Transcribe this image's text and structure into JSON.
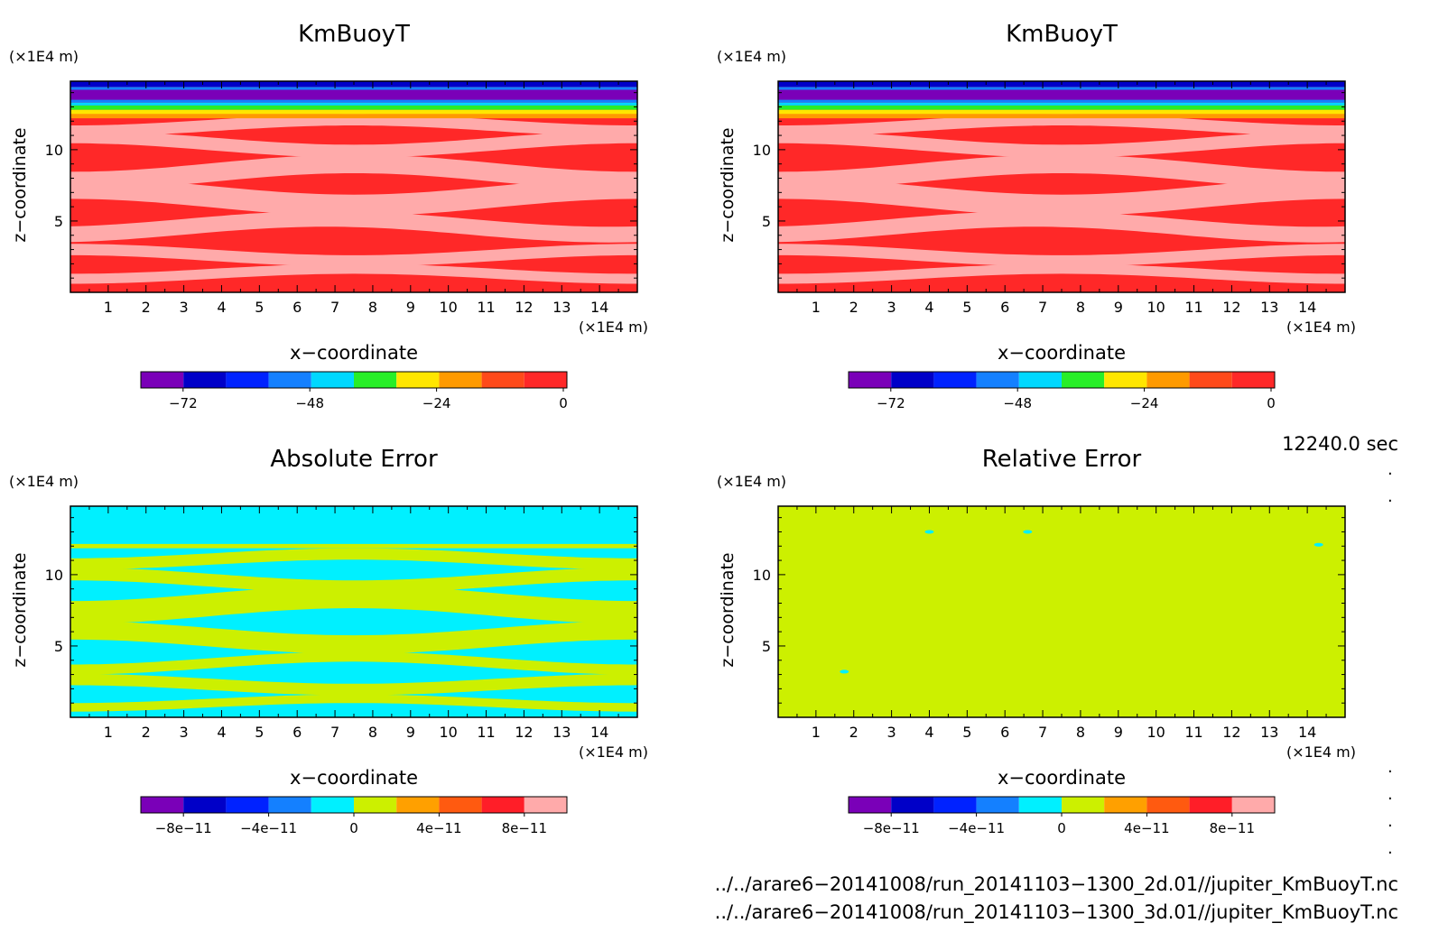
{
  "panels": [
    {
      "title": "KmBuoyT",
      "zscale": "(×1E4 m)",
      "xscale": "(×1E4 m)",
      "xlabel": "x−coordinate",
      "ylabel": "z−coordinate",
      "xticks": [
        "1",
        "2",
        "3",
        "4",
        "5",
        "6",
        "7",
        "8",
        "9",
        "10",
        "11",
        "12",
        "13",
        "14"
      ],
      "yticks": [
        "5",
        "10"
      ],
      "field": "kmbuoy",
      "colorbar": {
        "colors": [
          "#7a00b8",
          "#0000c8",
          "#0022ff",
          "#1480ff",
          "#00d8ff",
          "#28ee28",
          "#ffe600",
          "#ff9a00",
          "#ff4a1a",
          "#ff2828"
        ],
        "labels": [
          "−72",
          "−48",
          "−24",
          "0"
        ]
      }
    },
    {
      "title": "KmBuoyT",
      "zscale": "(×1E4 m)",
      "xscale": "(×1E4 m)",
      "xlabel": "x−coordinate",
      "ylabel": "z−coordinate",
      "xticks": [
        "1",
        "2",
        "3",
        "4",
        "5",
        "6",
        "7",
        "8",
        "9",
        "10",
        "11",
        "12",
        "13",
        "14"
      ],
      "yticks": [
        "5",
        "10"
      ],
      "field": "kmbuoy",
      "colorbar": {
        "colors": [
          "#7a00b8",
          "#0000c8",
          "#0022ff",
          "#1480ff",
          "#00d8ff",
          "#28ee28",
          "#ffe600",
          "#ff9a00",
          "#ff4a1a",
          "#ff2828"
        ],
        "labels": [
          "−72",
          "−48",
          "−24",
          "0"
        ]
      }
    },
    {
      "title": "Absolute Error",
      "zscale": "(×1E4 m)",
      "xscale": "(×1E4 m)",
      "xlabel": "x−coordinate",
      "ylabel": "z−coordinate",
      "xticks": [
        "1",
        "2",
        "3",
        "4",
        "5",
        "6",
        "7",
        "8",
        "9",
        "10",
        "11",
        "12",
        "13",
        "14"
      ],
      "yticks": [
        "5",
        "10"
      ],
      "field": "abserr",
      "colorbar": {
        "colors": [
          "#7a00b8",
          "#0000c8",
          "#0022ff",
          "#1480ff",
          "#00f0ff",
          "#ccf000",
          "#ffa000",
          "#ff5a10",
          "#ff1e28",
          "#ffaaaa"
        ],
        "labels": [
          "−8e−11",
          "−4e−11",
          "0",
          "4e−11",
          "8e−11"
        ]
      }
    },
    {
      "title": "Relative Error",
      "zscale": "(×1E4 m)",
      "xscale": "(×1E4 m)",
      "xlabel": "x−coordinate",
      "ylabel": "z−coordinate",
      "xticks": [
        "1",
        "2",
        "3",
        "4",
        "5",
        "6",
        "7",
        "8",
        "9",
        "10",
        "11",
        "12",
        "13",
        "14"
      ],
      "yticks": [
        "5",
        "10"
      ],
      "field": "relerr",
      "colorbar": {
        "colors": [
          "#7a00b8",
          "#0000c8",
          "#0022ff",
          "#1480ff",
          "#00f0ff",
          "#ccf000",
          "#ffa000",
          "#ff5a10",
          "#ff1e28",
          "#ffaaaa"
        ],
        "labels": [
          "−8e−11",
          "−4e−11",
          "0",
          "4e−11",
          "8e−11"
        ]
      }
    }
  ],
  "time_label": "12240.0 sec",
  "files": [
    "../../arare6−20141008/run_20141103−1300_2d.01//jupiter_KmBuoyT.nc",
    "../../arare6−20141008/run_20141103−1300_3d.01//jupiter_KmBuoyT.nc"
  ],
  "chart_data": [
    {
      "type": "heatmap",
      "title": "KmBuoyT",
      "xlabel": "x−coordinate",
      "ylabel": "z−coordinate",
      "xunit": "(×1E4 m)",
      "yunit": "(×1E4 m)",
      "xlim": [
        0,
        15
      ],
      "ylim": [
        0,
        15
      ],
      "color_levels": [
        -80,
        -72,
        -64,
        -56,
        -48,
        -40,
        -32,
        -24,
        -16,
        -8,
        0
      ],
      "colorbar_labels": [
        "−72",
        "−48",
        "−24",
        "0"
      ]
    },
    {
      "type": "heatmap",
      "title": "KmBuoyT",
      "xlabel": "x−coordinate",
      "ylabel": "z−coordinate",
      "xunit": "(×1E4 m)",
      "yunit": "(×1E4 m)",
      "xlim": [
        0,
        15
      ],
      "ylim": [
        0,
        15
      ],
      "color_levels": [
        -80,
        -72,
        -64,
        -56,
        -48,
        -40,
        -32,
        -24,
        -16,
        -8,
        0
      ],
      "colorbar_labels": [
        "−72",
        "−48",
        "−24",
        "0"
      ]
    },
    {
      "type": "heatmap",
      "title": "Absolute Error",
      "xlabel": "x−coordinate",
      "ylabel": "z−coordinate",
      "xunit": "(×1E4 m)",
      "yunit": "(×1E4 m)",
      "xlim": [
        0,
        15
      ],
      "ylim": [
        0,
        15
      ],
      "colorbar_labels": [
        "−8e−11",
        "−4e−11",
        "0",
        "4e−11",
        "8e−11"
      ]
    },
    {
      "type": "heatmap",
      "title": "Relative Error",
      "xlabel": "x−coordinate",
      "ylabel": "z−coordinate",
      "xunit": "(×1E4 m)",
      "yunit": "(×1E4 m)",
      "xlim": [
        0,
        15
      ],
      "ylim": [
        0,
        15
      ],
      "colorbar_labels": [
        "−8e−11",
        "−4e−11",
        "0",
        "4e−11",
        "8e−11"
      ]
    }
  ]
}
